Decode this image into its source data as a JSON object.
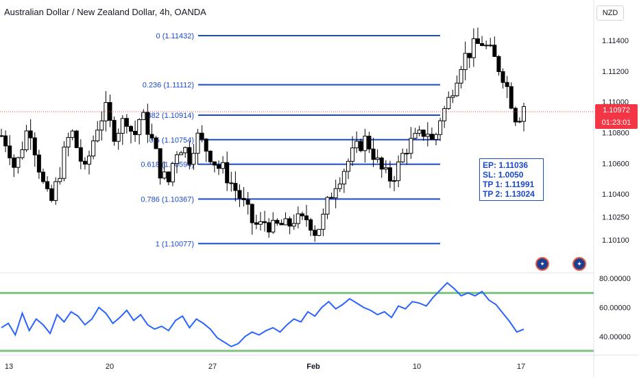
{
  "header": {
    "title": "Australian Dollar / New Zealand Dollar, 4h, OANDA",
    "currency": "NZD"
  },
  "price_tag": {
    "price": "1.10972",
    "countdown": "01:23:01"
  },
  "trade_box": {
    "lines": [
      "EP: 1.11036",
      "SL: 1.0050",
      "TP 1: 1.11991",
      "TP 2: 1.13024"
    ]
  },
  "colors": {
    "fib_line": "#1848cc",
    "candle": "#000000",
    "rsi_line": "#2962ff",
    "rsi_band": "#7cc47f",
    "current_price": "#f23645"
  },
  "icons": [
    "au-flag-icon",
    "au-flag-icon"
  ],
  "chart_data": [
    {
      "type": "candlestick",
      "title": "Australian Dollar / New Zealand Dollar, 4h, OANDA",
      "y_axis": {
        "ticks": [
          "1.11400",
          "1.11200",
          "1.11000",
          "1.10800",
          "1.10600",
          "1.10400",
          "1.10250",
          "1.10100"
        ],
        "range": [
          1.099,
          1.1153
        ]
      },
      "x_axis": {
        "ticks": [
          "13",
          "20",
          "27",
          "Feb",
          "10",
          "17"
        ]
      },
      "fib_levels": [
        {
          "label": "0 (1.11432)",
          "value": 1.11432
        },
        {
          "label": "0.236 (1.11112)",
          "value": 1.11112
        },
        {
          "label": "0.382 (1.10914)",
          "value": 1.10914
        },
        {
          "label": "0.5 (1.10754)",
          "value": 1.10754
        },
        {
          "label": "0.618 (1.10594)",
          "value": 1.10594
        },
        {
          "label": "0.786 (1.10367)",
          "value": 1.10367
        },
        {
          "label": "1 (1.10077)",
          "value": 1.10077
        }
      ],
      "close_path": [
        [
          0,
          1.1078
        ],
        [
          4,
          1.1072
        ],
        [
          8,
          1.1055
        ],
        [
          12,
          1.1072
        ],
        [
          16,
          1.1086
        ],
        [
          20,
          1.1066
        ],
        [
          24,
          1.1046
        ],
        [
          28,
          1.1032
        ],
        [
          32,
          1.1048
        ],
        [
          36,
          1.1066
        ],
        [
          40,
          1.1082
        ],
        [
          44,
          1.1068
        ],
        [
          48,
          1.1054
        ],
        [
          52,
          1.1072
        ],
        [
          56,
          1.1088
        ],
        [
          60,
          1.1094
        ],
        [
          64,
          1.1079
        ],
        [
          68,
          1.1084
        ],
        [
          72,
          1.109
        ],
        [
          76,
          1.1076
        ],
        [
          80,
          1.1092
        ],
        [
          84,
          1.1083
        ],
        [
          88,
          1.1069
        ],
        [
          92,
          1.1052
        ],
        [
          96,
          1.1048
        ],
        [
          100,
          1.1068
        ],
        [
          104,
          1.1072
        ],
        [
          108,
          1.1064
        ],
        [
          112,
          1.1078
        ],
        [
          116,
          1.1072
        ],
        [
          120,
          1.1066
        ],
        [
          124,
          1.1058
        ],
        [
          128,
          1.1055
        ],
        [
          132,
          1.1047
        ],
        [
          136,
          1.104
        ],
        [
          140,
          1.1031
        ],
        [
          144,
          1.1022
        ],
        [
          148,
          1.1018
        ],
        [
          152,
          1.1023
        ],
        [
          156,
          1.1017
        ],
        [
          160,
          1.102
        ],
        [
          164,
          1.1018
        ],
        [
          168,
          1.1024
        ],
        [
          172,
          1.1021
        ],
        [
          176,
          1.1025
        ],
        [
          180,
          1.1016
        ],
        [
          184,
          1.1021
        ],
        [
          188,
          1.1036
        ],
        [
          192,
          1.1048
        ],
        [
          196,
          1.1055
        ],
        [
          200,
          1.1063
        ],
        [
          204,
          1.1069
        ],
        [
          208,
          1.1076
        ],
        [
          212,
          1.1071
        ],
        [
          216,
          1.106
        ],
        [
          220,
          1.1052
        ],
        [
          224,
          1.105
        ],
        [
          228,
          1.1058
        ],
        [
          232,
          1.107
        ],
        [
          236,
          1.1074
        ],
        [
          240,
          1.1077
        ],
        [
          244,
          1.1083
        ],
        [
          248,
          1.1072
        ],
        [
          252,
          1.109
        ],
        [
          256,
          1.1098
        ],
        [
          260,
          1.1113
        ],
        [
          264,
          1.1126
        ],
        [
          268,
          1.1132
        ],
        [
          272,
          1.1136
        ],
        [
          276,
          1.1139
        ],
        [
          280,
          1.1133
        ],
        [
          284,
          1.1126
        ],
        [
          288,
          1.1118
        ],
        [
          292,
          1.1104
        ],
        [
          296,
          1.1088
        ],
        [
          300,
          1.1098
        ]
      ]
    },
    {
      "type": "line",
      "title": "",
      "y_axis": {
        "ticks": [
          "80.00000",
          "60.00000",
          "40.00000"
        ],
        "range": [
          29,
          82
        ]
      },
      "bands": [
        70,
        30
      ],
      "x": [
        0,
        4,
        8,
        12,
        16,
        20,
        24,
        28,
        32,
        36,
        40,
        44,
        48,
        52,
        56,
        60,
        64,
        68,
        72,
        76,
        80,
        84,
        88,
        92,
        96,
        100,
        104,
        108,
        112,
        116,
        120,
        124,
        128,
        132,
        136,
        140,
        144,
        148,
        152,
        156,
        160,
        164,
        168,
        172,
        176,
        180,
        184,
        188,
        192,
        196,
        200,
        204,
        208,
        212,
        216,
        220,
        224,
        228,
        232,
        236,
        240,
        244,
        248,
        252,
        256,
        260,
        264,
        268,
        272,
        276,
        280,
        284,
        288,
        292,
        296,
        300
      ],
      "values": [
        46,
        49,
        41,
        56,
        44,
        52,
        48,
        42,
        55,
        50,
        57,
        54,
        48,
        52,
        60,
        56,
        49,
        53,
        58,
        51,
        55,
        48,
        45,
        47,
        44,
        51,
        54,
        46,
        52,
        49,
        45,
        39,
        36,
        33,
        35,
        40,
        43,
        41,
        44,
        46,
        43,
        48,
        52,
        50,
        57,
        54,
        60,
        64,
        59,
        62,
        66,
        63,
        60,
        58,
        55,
        57,
        53,
        61,
        59,
        64,
        63,
        61,
        67,
        72,
        77,
        73,
        68,
        70,
        68,
        71,
        65,
        62,
        56,
        50,
        43,
        45
      ]
    }
  ]
}
